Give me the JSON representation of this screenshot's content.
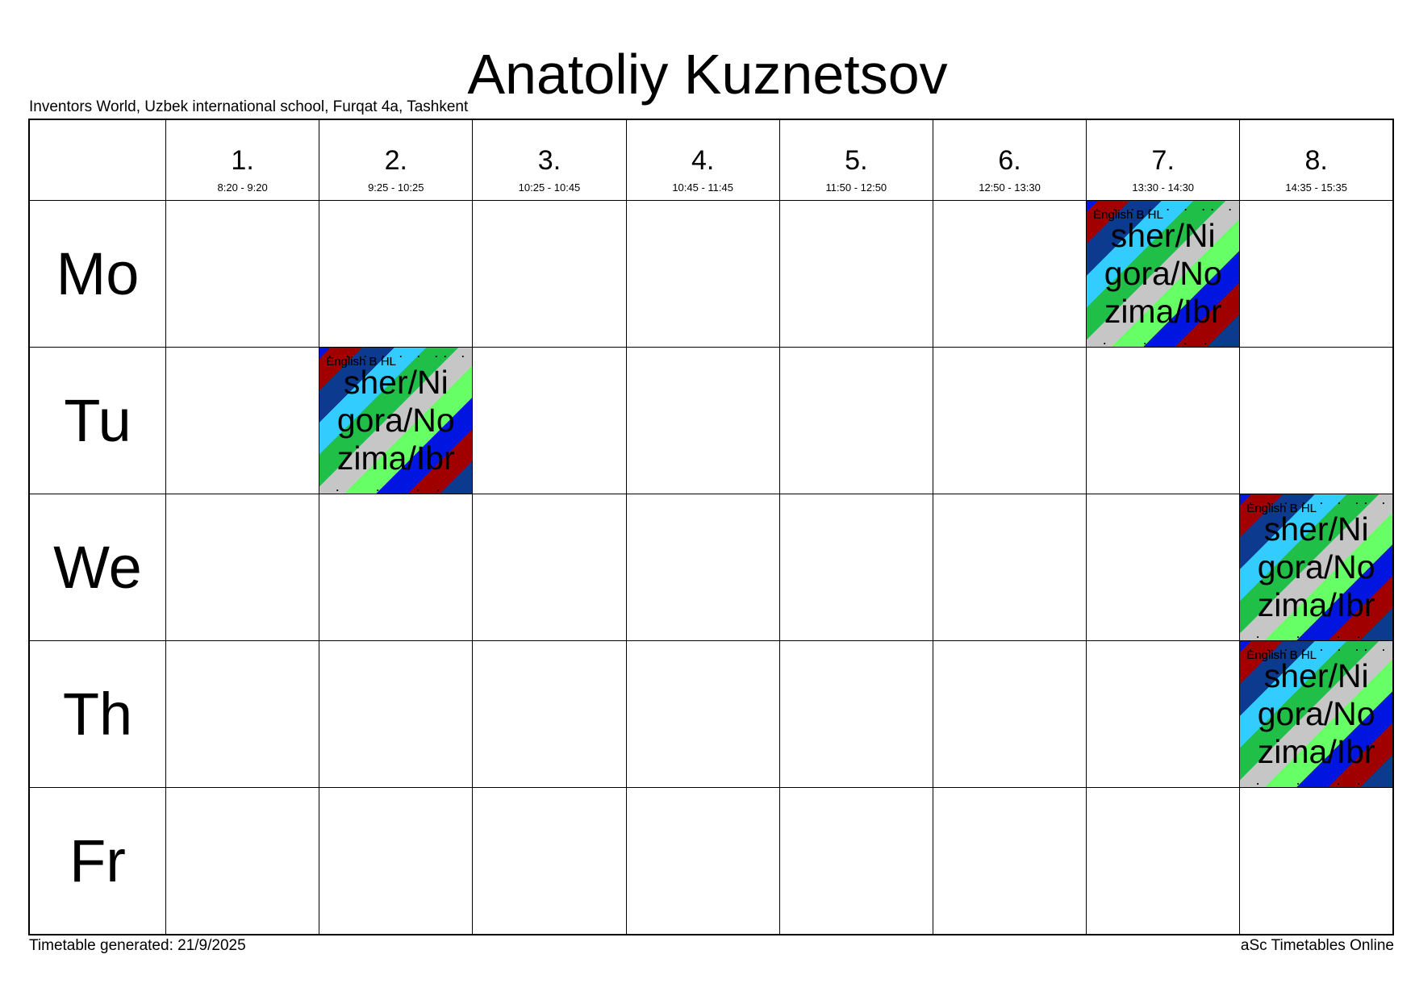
{
  "title": "Anatoliy Kuznetsov",
  "school": "Inventors World, Uzbek international school, Furqat 4a, Tashkent",
  "periods": [
    {
      "num": "1.",
      "time": "8:20 - 9:20"
    },
    {
      "num": "2.",
      "time": "9:25 - 10:25"
    },
    {
      "num": "3.",
      "time": "10:25 - 10:45"
    },
    {
      "num": "4.",
      "time": "10:45 - 11:45"
    },
    {
      "num": "5.",
      "time": "11:50 - 12:50"
    },
    {
      "num": "6.",
      "time": "12:50 - 13:30"
    },
    {
      "num": "7.",
      "time": "13:30 - 14:30"
    },
    {
      "num": "8.",
      "time": "14:35 - 15:35"
    }
  ],
  "days": [
    "Mo",
    "Tu",
    "We",
    "Th",
    "Fr"
  ],
  "lesson": {
    "subject": "English B HL",
    "groups": "sher/Ni\ngora/No\nzima/Ibr",
    "dots_top": ". . . . . . .. . . . . ..",
    "dots_bottom": ". . .."
  },
  "lesson_slots": [
    {
      "day": "Mo",
      "period": "7."
    },
    {
      "day": "Tu",
      "period": "2."
    },
    {
      "day": "We",
      "period": "8."
    },
    {
      "day": "Th",
      "period": "8."
    }
  ],
  "stripe_colors": [
    "#0b3a8f",
    "#a00000",
    "#0016e0",
    "#66ff66",
    "#c6c6c6",
    "#1fbf48",
    "#33ccff"
  ],
  "footer": {
    "generated": "Timetable generated: 21/9/2025",
    "brand": "aSc Timetables Online"
  }
}
